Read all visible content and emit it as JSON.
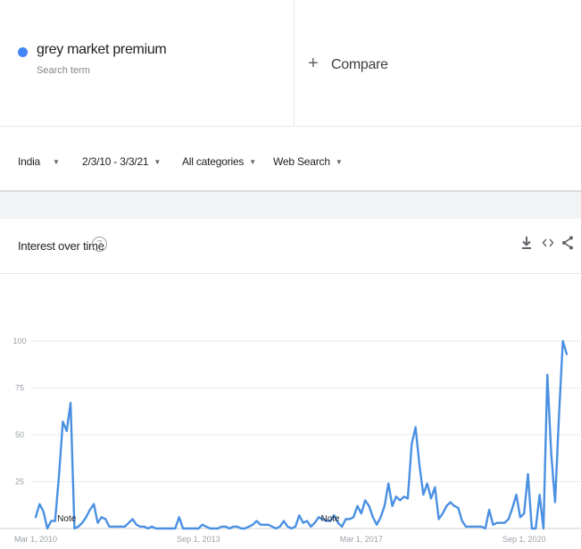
{
  "search_term": {
    "name": "grey market premium",
    "subtitle": "Search term",
    "color": "#4285f4"
  },
  "compare": {
    "icon": "plus-icon",
    "label": "Compare"
  },
  "filters": {
    "region": "India",
    "date_range": "2/3/10 - 3/3/21",
    "category": "All categories",
    "search_type": "Web Search"
  },
  "panel": {
    "title": "Interest over time",
    "help_icon_glyph": "?",
    "actions": [
      "download-icon",
      "embed-icon",
      "share-icon"
    ]
  },
  "chart_data": {
    "type": "line",
    "title": "",
    "xlabel": "",
    "ylabel": "",
    "ylim": [
      0,
      100
    ],
    "y_ticks": [
      25,
      50,
      75,
      100
    ],
    "x_tick_labels": [
      {
        "label": "Mar 1, 2010",
        "index": 0
      },
      {
        "label": "Sep 1, 2013",
        "index": 42
      },
      {
        "label": "Mar 1, 2017",
        "index": 84
      },
      {
        "label": "Sep 1, 2020",
        "index": 126
      }
    ],
    "annotations": [
      {
        "label": "Note",
        "index": 8
      },
      {
        "label": "Note",
        "index": 76
      }
    ],
    "grid": true,
    "legend": "none",
    "series": [
      {
        "color": "#4a90e2",
        "values": [
          6,
          13,
          9,
          0,
          4,
          4,
          28,
          57,
          52,
          67,
          0,
          1,
          3,
          6,
          10,
          13,
          3,
          6,
          5,
          1,
          1,
          1,
          1,
          1,
          3,
          5,
          2,
          1,
          1,
          0,
          1,
          0,
          0,
          0,
          0,
          0,
          0,
          6,
          0,
          0,
          0,
          0,
          0,
          2,
          1,
          0,
          0,
          0,
          1,
          1,
          0,
          1,
          1,
          0,
          0,
          1,
          2,
          4,
          2,
          2,
          2,
          1,
          0,
          1,
          4,
          1,
          0,
          1,
          7,
          3,
          4,
          1,
          3,
          6,
          5,
          4,
          4,
          7,
          3,
          1,
          5,
          5,
          6,
          12,
          8,
          15,
          12,
          6,
          2,
          6,
          12,
          24,
          12,
          17,
          15,
          17,
          16,
          45,
          54,
          34,
          18,
          24,
          16,
          22,
          5,
          8,
          12,
          14,
          12,
          11,
          4,
          1,
          1,
          1,
          1,
          1,
          0,
          10,
          2,
          3,
          3,
          3,
          5,
          11,
          18,
          6,
          8,
          29,
          0,
          0,
          18,
          0,
          82,
          40,
          14,
          60,
          100,
          93
        ]
      }
    ]
  }
}
